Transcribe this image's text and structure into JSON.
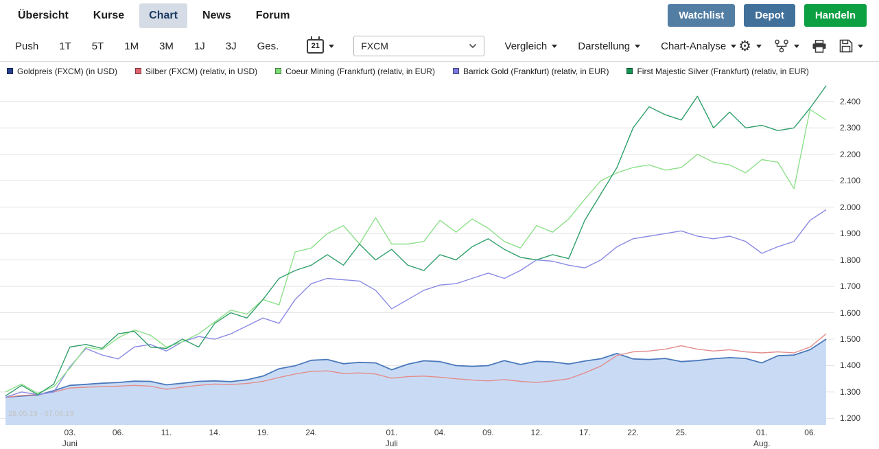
{
  "nav": {
    "tabs": [
      {
        "label": "Übersicht",
        "active": false
      },
      {
        "label": "Kurse",
        "active": false
      },
      {
        "label": "Chart",
        "active": true
      },
      {
        "label": "News",
        "active": false
      },
      {
        "label": "Forum",
        "active": false
      }
    ],
    "actions": [
      {
        "label": "Watchlist",
        "color": "#537ea4"
      },
      {
        "label": "Depot",
        "color": "#41719b"
      },
      {
        "label": "Handeln",
        "color": "#0da043"
      }
    ]
  },
  "toolbar": {
    "periods": [
      "Push",
      "1T",
      "5T",
      "1M",
      "3M",
      "1J",
      "3J",
      "Ges."
    ],
    "calendar_day": "21",
    "exchange_select": {
      "value": "FXCM"
    },
    "menus": [
      "Vergleich",
      "Darstellung",
      "Chart-Analyse"
    ],
    "icons": [
      "settings-gear",
      "chart-indicators",
      "print",
      "save"
    ]
  },
  "legend": [
    {
      "label": "Goldpreis (FXCM) (in USD)",
      "color": "#27408f"
    },
    {
      "label": "Silber (FXCM) (relativ, in USD)",
      "color": "#e0636e"
    },
    {
      "label": "Coeur Mining (Frankfurt) (relativ, in EUR)",
      "color": "#7ddc74"
    },
    {
      "label": "Barrick Gold (Frankfurt) (relativ, in EUR)",
      "color": "#7b7bdf"
    },
    {
      "label": "First Majestic Silver (Frankfurt) (relativ, in EUR)",
      "color": "#159556"
    }
  ],
  "chart_data": {
    "type": "line",
    "title": "",
    "range_label": "28.05.19 - 07.08.19",
    "grid": "horizontal",
    "legend_position": "top",
    "ylim": [
      1.175,
      2.475
    ],
    "y_ticks": [
      {
        "value": 2.4,
        "label": "2.400"
      },
      {
        "value": 2.3,
        "label": "2.300"
      },
      {
        "value": 2.2,
        "label": "2.200"
      },
      {
        "value": 2.1,
        "label": "2.100"
      },
      {
        "value": 2.0,
        "label": "2.000"
      },
      {
        "value": 1.9,
        "label": "1.900"
      },
      {
        "value": 1.8,
        "label": "1.800"
      },
      {
        "value": 1.7,
        "label": "1.700"
      },
      {
        "value": 1.6,
        "label": "1.600"
      },
      {
        "value": 1.5,
        "label": "1.500"
      },
      {
        "value": 1.4,
        "label": "1.400"
      },
      {
        "value": 1.3,
        "label": "1.300"
      },
      {
        "value": 1.2,
        "label": "1.200"
      }
    ],
    "x_ticks": [
      {
        "index": 4,
        "label": "03.",
        "sub": "Juni"
      },
      {
        "index": 7,
        "label": "06."
      },
      {
        "index": 10,
        "label": "11."
      },
      {
        "index": 13,
        "label": "14."
      },
      {
        "index": 16,
        "label": "19."
      },
      {
        "index": 19,
        "label": "24."
      },
      {
        "index": 24,
        "label": "01.",
        "sub": "Juli"
      },
      {
        "index": 27,
        "label": "04."
      },
      {
        "index": 30,
        "label": "09."
      },
      {
        "index": 33,
        "label": "12."
      },
      {
        "index": 36,
        "label": "17."
      },
      {
        "index": 39,
        "label": "22."
      },
      {
        "index": 42,
        "label": "25."
      },
      {
        "index": 47,
        "label": "01.",
        "sub": "Aug."
      },
      {
        "index": 50,
        "label": "06."
      }
    ],
    "dates": [
      "28.05",
      "29.05",
      "30.05",
      "31.05",
      "03.06",
      "04.06",
      "05.06",
      "06.06",
      "07.06",
      "10.06",
      "11.06",
      "12.06",
      "13.06",
      "14.06",
      "17.06",
      "18.06",
      "19.06",
      "20.06",
      "21.06",
      "24.06",
      "25.06",
      "26.06",
      "27.06",
      "28.06",
      "01.07",
      "02.07",
      "03.07",
      "04.07",
      "05.07",
      "08.07",
      "09.07",
      "10.07",
      "11.07",
      "12.07",
      "15.07",
      "16.07",
      "17.07",
      "18.07",
      "19.07",
      "22.07",
      "23.07",
      "24.07",
      "25.07",
      "26.07",
      "29.07",
      "30.07",
      "31.07",
      "01.08",
      "02.08",
      "05.08",
      "06.08",
      "07.08"
    ],
    "series": [
      {
        "id": "goldpreis",
        "name": "Goldpreis (FXCM) (in USD)",
        "color": "#4a78bb",
        "area": true,
        "fill": "#c9dbf4",
        "values": [
          1.28,
          1.285,
          1.288,
          1.305,
          1.325,
          1.329,
          1.333,
          1.336,
          1.341,
          1.34,
          1.327,
          1.333,
          1.34,
          1.342,
          1.339,
          1.346,
          1.36,
          1.388,
          1.399,
          1.42,
          1.423,
          1.407,
          1.412,
          1.41,
          1.384,
          1.405,
          1.418,
          1.415,
          1.4,
          1.397,
          1.4,
          1.419,
          1.404,
          1.416,
          1.414,
          1.406,
          1.417,
          1.426,
          1.446,
          1.425,
          1.423,
          1.427,
          1.415,
          1.419,
          1.426,
          1.43,
          1.427,
          1.41,
          1.437,
          1.44,
          1.46,
          1.5
        ]
      },
      {
        "id": "silber",
        "name": "Silber (FXCM) (relativ, in USD)",
        "color": "#e38c8c",
        "area": false,
        "values": [
          1.28,
          1.287,
          1.29,
          1.3,
          1.315,
          1.318,
          1.32,
          1.322,
          1.325,
          1.322,
          1.31,
          1.318,
          1.325,
          1.33,
          1.328,
          1.332,
          1.34,
          1.355,
          1.368,
          1.378,
          1.38,
          1.37,
          1.372,
          1.368,
          1.352,
          1.358,
          1.36,
          1.356,
          1.35,
          1.345,
          1.342,
          1.347,
          1.34,
          1.336,
          1.342,
          1.35,
          1.372,
          1.398,
          1.438,
          1.452,
          1.455,
          1.462,
          1.475,
          1.462,
          1.455,
          1.46,
          1.452,
          1.448,
          1.452,
          1.448,
          1.47,
          1.52
        ]
      },
      {
        "id": "barrick-gold",
        "name": "Barrick Gold (Frankfurt) (relativ, in EUR)",
        "color": "#8a8ae4",
        "area": false,
        "values": [
          1.28,
          1.3,
          1.29,
          1.3,
          1.395,
          1.465,
          1.44,
          1.425,
          1.47,
          1.48,
          1.455,
          1.49,
          1.51,
          1.5,
          1.52,
          1.55,
          1.58,
          1.56,
          1.65,
          1.71,
          1.73,
          1.725,
          1.72,
          1.685,
          1.615,
          1.65,
          1.685,
          1.705,
          1.71,
          1.73,
          1.75,
          1.73,
          1.76,
          1.8,
          1.795,
          1.78,
          1.77,
          1.8,
          1.85,
          1.88,
          1.89,
          1.9,
          1.91,
          1.89,
          1.88,
          1.89,
          1.87,
          1.825,
          1.85,
          1.87,
          1.95,
          1.99
        ]
      },
      {
        "id": "coeur-mining",
        "name": "Coeur Mining (Frankfurt) (relativ, in EUR)",
        "color": "#8ee08a",
        "area": false,
        "values": [
          1.3,
          1.33,
          1.295,
          1.32,
          1.39,
          1.47,
          1.46,
          1.505,
          1.535,
          1.515,
          1.47,
          1.49,
          1.52,
          1.565,
          1.61,
          1.595,
          1.65,
          1.63,
          1.83,
          1.845,
          1.9,
          1.93,
          1.86,
          1.96,
          1.86,
          1.86,
          1.87,
          1.95,
          1.905,
          1.955,
          1.92,
          1.87,
          1.845,
          1.93,
          1.905,
          1.955,
          2.03,
          2.1,
          2.13,
          2.15,
          2.16,
          2.14,
          2.15,
          2.2,
          2.17,
          2.16,
          2.13,
          2.18,
          2.17,
          2.07,
          2.37,
          2.33
        ]
      },
      {
        "id": "first-majestic-silver",
        "name": "First Majestic Silver (Frankfurt) (relativ, in EUR)",
        "color": "#2f9f6a",
        "area": false,
        "values": [
          1.285,
          1.325,
          1.29,
          1.33,
          1.47,
          1.48,
          1.465,
          1.52,
          1.53,
          1.47,
          1.465,
          1.5,
          1.47,
          1.56,
          1.6,
          1.58,
          1.65,
          1.73,
          1.76,
          1.78,
          1.82,
          1.78,
          1.86,
          1.8,
          1.84,
          1.78,
          1.76,
          1.82,
          1.8,
          1.85,
          1.88,
          1.84,
          1.81,
          1.8,
          1.82,
          1.805,
          1.95,
          2.05,
          2.15,
          2.3,
          2.38,
          2.35,
          2.33,
          2.42,
          2.3,
          2.36,
          2.3,
          2.31,
          2.29,
          2.3,
          2.375,
          2.46
        ]
      }
    ]
  }
}
